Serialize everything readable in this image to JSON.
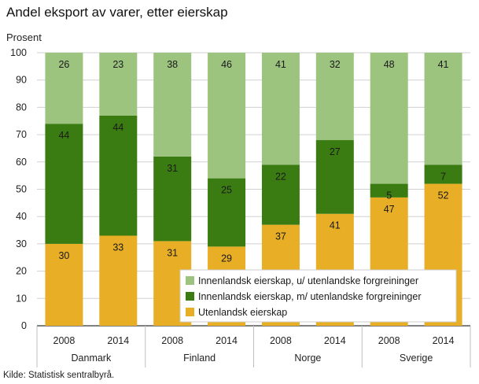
{
  "chart_data": {
    "type": "bar",
    "stacked": true,
    "title": "Andel eksport av varer, etter eierskap",
    "y_unit_label": "Prosent",
    "ylim": [
      0,
      100
    ],
    "yticks": [
      0,
      10,
      20,
      30,
      40,
      50,
      60,
      70,
      80,
      90,
      100
    ],
    "grid": true,
    "legend_position": "bottom-right, inside plot",
    "categories": [
      "2008",
      "2014",
      "2008",
      "2014",
      "2008",
      "2014",
      "2008",
      "2014"
    ],
    "groups": [
      {
        "label": "Danmark",
        "categories": [
          "2008",
          "2014"
        ]
      },
      {
        "label": "Finland",
        "categories": [
          "2008",
          "2014"
        ]
      },
      {
        "label": "Norge",
        "categories": [
          "2008",
          "2014"
        ]
      },
      {
        "label": "Sverige",
        "categories": [
          "2008",
          "2014"
        ]
      }
    ],
    "series": [
      {
        "name": "Utenlandsk eierskap",
        "color": "#e8ae25",
        "values": [
          30,
          33,
          31,
          29,
          37,
          41,
          47,
          52
        ]
      },
      {
        "name": "Innenlandsk eierskap, m/ utenlandske forgreininger",
        "color": "#3b7c12",
        "values": [
          44,
          44,
          31,
          25,
          22,
          27,
          5,
          7
        ]
      },
      {
        "name": "Innenlandsk eierskap, u/ utenlandske forgreininger",
        "color": "#9cc47f",
        "values": [
          26,
          23,
          38,
          46,
          41,
          32,
          48,
          41
        ]
      }
    ],
    "legend_order": [
      2,
      1,
      0
    ]
  },
  "footer": {
    "source": "Kilde: Statistisk sentralbyrå."
  }
}
